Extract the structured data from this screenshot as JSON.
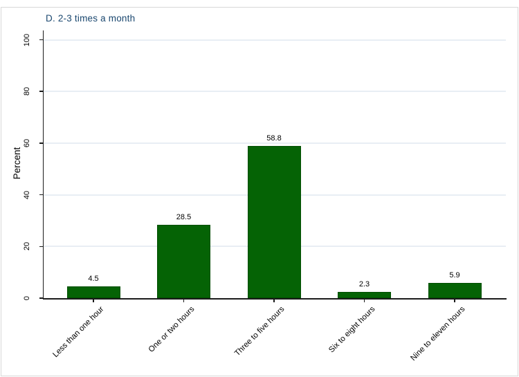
{
  "figure": {
    "background_color": "#ffffff",
    "border_color": "#d8d8d8"
  },
  "chart_data": {
    "type": "bar",
    "title": "D. 2-3 times a month",
    "title_color": "#1a476f",
    "categories": [
      "Less than one hour",
      "One or two hours",
      "Three to five hours",
      "Six to eight hours",
      "Nine to eleven hours"
    ],
    "values": [
      4.5,
      28.5,
      58.8,
      2.3,
      5.9
    ],
    "value_labels": [
      "4.5",
      "28.5",
      "58.8",
      "2.3",
      "5.9"
    ],
    "xlabel": "",
    "ylabel": "Percent",
    "ylim": [
      0,
      100
    ],
    "yticks": [
      0,
      20,
      40,
      60,
      80,
      100
    ],
    "ytick_labels": [
      "0",
      "20",
      "40",
      "60",
      "80",
      "100"
    ],
    "grid": true,
    "legend_position": "none",
    "bar_color": "#056305",
    "bar_border_color": "#034e03",
    "gridline_color": "#e8eef4",
    "axis_color": "#1a1a1a",
    "label_color": "#000000"
  }
}
